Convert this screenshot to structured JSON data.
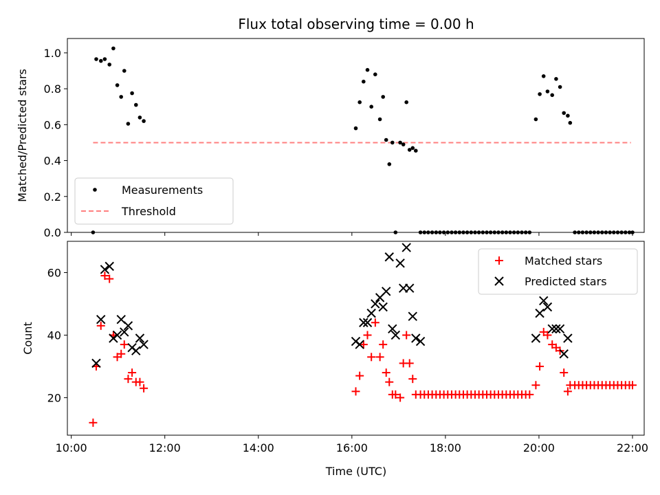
{
  "chart_data": [
    {
      "type": "scatter",
      "title": "Flux total observing time = 0.00 h",
      "xlabel": "",
      "ylabel": "Matched/Predicted stars",
      "xlim": [
        "09:55",
        "22:15"
      ],
      "ylim": [
        0,
        1.08
      ],
      "yticks": [
        "0.0",
        "0.2",
        "0.4",
        "0.6",
        "0.8",
        "1.0"
      ],
      "grid": false,
      "legend_placement": "lower-left",
      "colors": {
        "measurements": "#000000",
        "threshold": "#ff7f7f"
      },
      "series": [
        {
          "name": "Measurements",
          "marker": "dot",
          "x": [
            "10:28",
            "10:32",
            "10:38",
            "10:43",
            "10:49",
            "10:54",
            "10:59",
            "11:04",
            "11:08",
            "11:13",
            "11:18",
            "11:23",
            "11:28",
            "11:33",
            "16:05",
            "16:10",
            "16:15",
            "16:20",
            "16:25",
            "16:30",
            "16:36",
            "16:40",
            "16:44",
            "16:48",
            "16:52",
            "16:56",
            "17:02",
            "17:06",
            "17:10",
            "17:14",
            "17:18",
            "17:22",
            "17:28",
            "19:56",
            "20:01",
            "20:06",
            "20:11",
            "20:17",
            "20:22",
            "20:27",
            "20:32",
            "20:37"
          ],
          "y": [
            0.0,
            0.965,
            0.955,
            0.965,
            0.935,
            1.025,
            0.82,
            0.755,
            0.9,
            0.605,
            0.775,
            0.71,
            0.64,
            0.62,
            0.58,
            0.725,
            0.84,
            0.905,
            0.7,
            0.88,
            0.63,
            0.755,
            0.515,
            0.38,
            0.5,
            0.0,
            0.5,
            0.49,
            0.725,
            0.46,
            0.47,
            0.455,
            0.0,
            0.63,
            0.77,
            0.87,
            0.785,
            0.765,
            0.855,
            0.81,
            0.665,
            0.65
          ]
        },
        {
          "name": "",
          "marker": "dot",
          "x": [
            "17:33",
            "17:38",
            "17:43",
            "17:48",
            "17:53",
            "17:58",
            "18:03",
            "18:08",
            "18:13",
            "18:18",
            "18:23",
            "18:28",
            "18:33",
            "18:38",
            "18:43",
            "18:48",
            "18:53",
            "18:58",
            "19:03",
            "19:08",
            "19:13",
            "19:18",
            "19:23",
            "19:28",
            "19:33",
            "19:38",
            "19:43",
            "19:48",
            "20:40",
            "20:46",
            "20:51",
            "20:56",
            "21:01",
            "21:06",
            "21:11",
            "21:16",
            "21:21",
            "21:26",
            "21:31",
            "21:36",
            "21:41",
            "21:46",
            "21:51",
            "21:56",
            "22:00"
          ],
          "y": [
            0,
            0,
            0,
            0,
            0,
            0,
            0,
            0,
            0,
            0,
            0,
            0,
            0,
            0,
            0,
            0,
            0,
            0,
            0,
            0,
            0,
            0,
            0,
            0,
            0,
            0,
            0,
            0,
            0.61,
            0,
            0,
            0,
            0,
            0,
            0,
            0,
            0,
            0,
            0,
            0,
            0,
            0,
            0,
            0,
            0
          ]
        },
        {
          "name": "Threshold",
          "type": "line",
          "style": "dashed",
          "x": [
            "10:28",
            "21:58"
          ],
          "y": [
            0.5,
            0.5
          ]
        }
      ]
    },
    {
      "type": "scatter",
      "title": "",
      "xlabel": "Time (UTC)",
      "ylabel": "Count",
      "xlim": [
        "09:55",
        "22:15"
      ],
      "ylim": [
        8,
        70
      ],
      "xticks": [
        "10:00",
        "12:00",
        "14:00",
        "16:00",
        "18:00",
        "20:00",
        "22:00"
      ],
      "yticks": [
        "20",
        "40",
        "60"
      ],
      "grid": false,
      "legend_placement": "top-right",
      "colors": {
        "matched": "#ff0000",
        "predicted": "#000000"
      },
      "series": [
        {
          "name": "Matched stars",
          "marker": "plus",
          "x": [
            "10:28",
            "10:32",
            "10:38",
            "10:43",
            "10:49",
            "10:54",
            "10:59",
            "11:04",
            "11:08",
            "11:13",
            "11:18",
            "11:23",
            "11:28",
            "11:33",
            "16:05",
            "16:10",
            "16:15",
            "16:20",
            "16:25",
            "16:30",
            "16:36",
            "16:40",
            "16:44",
            "16:48",
            "16:52",
            "16:56",
            "17:02",
            "17:06",
            "17:10",
            "17:14",
            "17:18",
            "17:22",
            "17:28",
            "17:33",
            "17:38",
            "17:43",
            "17:48",
            "17:53",
            "17:58",
            "18:03",
            "18:08",
            "18:13",
            "18:18",
            "18:23",
            "18:28",
            "18:33",
            "18:38",
            "18:43",
            "18:48",
            "18:53",
            "18:58",
            "19:03",
            "19:08",
            "19:13",
            "19:18",
            "19:23",
            "19:28",
            "19:33",
            "19:38",
            "19:43",
            "19:48",
            "19:56",
            "20:01",
            "20:06",
            "20:11",
            "20:17",
            "20:22",
            "20:27",
            "20:32",
            "20:37",
            "20:40",
            "20:46",
            "20:51",
            "20:56",
            "21:01",
            "21:06",
            "21:11",
            "21:16",
            "21:21",
            "21:26",
            "21:31",
            "21:36",
            "21:41",
            "21:46",
            "21:51",
            "21:56",
            "22:00"
          ],
          "y": [
            12,
            30,
            43,
            59,
            58,
            40,
            33,
            34,
            37,
            26,
            28,
            25,
            25,
            23,
            22,
            27,
            37,
            40,
            33,
            44,
            33,
            37,
            28,
            25,
            21,
            21,
            20,
            31,
            40,
            31,
            26,
            21,
            21,
            21,
            21,
            21,
            21,
            21,
            21,
            21,
            21,
            21,
            21,
            21,
            21,
            21,
            21,
            21,
            21,
            21,
            21,
            21,
            21,
            21,
            21,
            21,
            21,
            21,
            21,
            21,
            21,
            24,
            30,
            41,
            40,
            37,
            36,
            35,
            28,
            22,
            24,
            24,
            24,
            24,
            24,
            24,
            24,
            24,
            24,
            24,
            24,
            24,
            24,
            24,
            24,
            24,
            24
          ]
        },
        {
          "name": "Predicted stars",
          "marker": "x",
          "x": [
            "10:32",
            "10:38",
            "10:43",
            "10:49",
            "10:54",
            "10:59",
            "11:04",
            "11:08",
            "11:13",
            "11:18",
            "11:23",
            "11:28",
            "11:33",
            "16:05",
            "16:10",
            "16:15",
            "16:20",
            "16:25",
            "16:30",
            "16:36",
            "16:40",
            "16:44",
            "16:48",
            "16:52",
            "16:56",
            "17:02",
            "17:06",
            "17:10",
            "17:14",
            "17:18",
            "17:22",
            "17:28",
            "19:56",
            "20:01",
            "20:06",
            "20:11",
            "20:17",
            "20:22",
            "20:27",
            "20:32",
            "20:37"
          ],
          "y": [
            31,
            45,
            61,
            62,
            39,
            40,
            45,
            41,
            43,
            36,
            35,
            39,
            37,
            38,
            37,
            44,
            44,
            47,
            50,
            52,
            49,
            54,
            65,
            42,
            40,
            63,
            55,
            68,
            55,
            46,
            39,
            38,
            39,
            47,
            51,
            49,
            42,
            42,
            42,
            34,
            39
          ]
        }
      ]
    }
  ]
}
